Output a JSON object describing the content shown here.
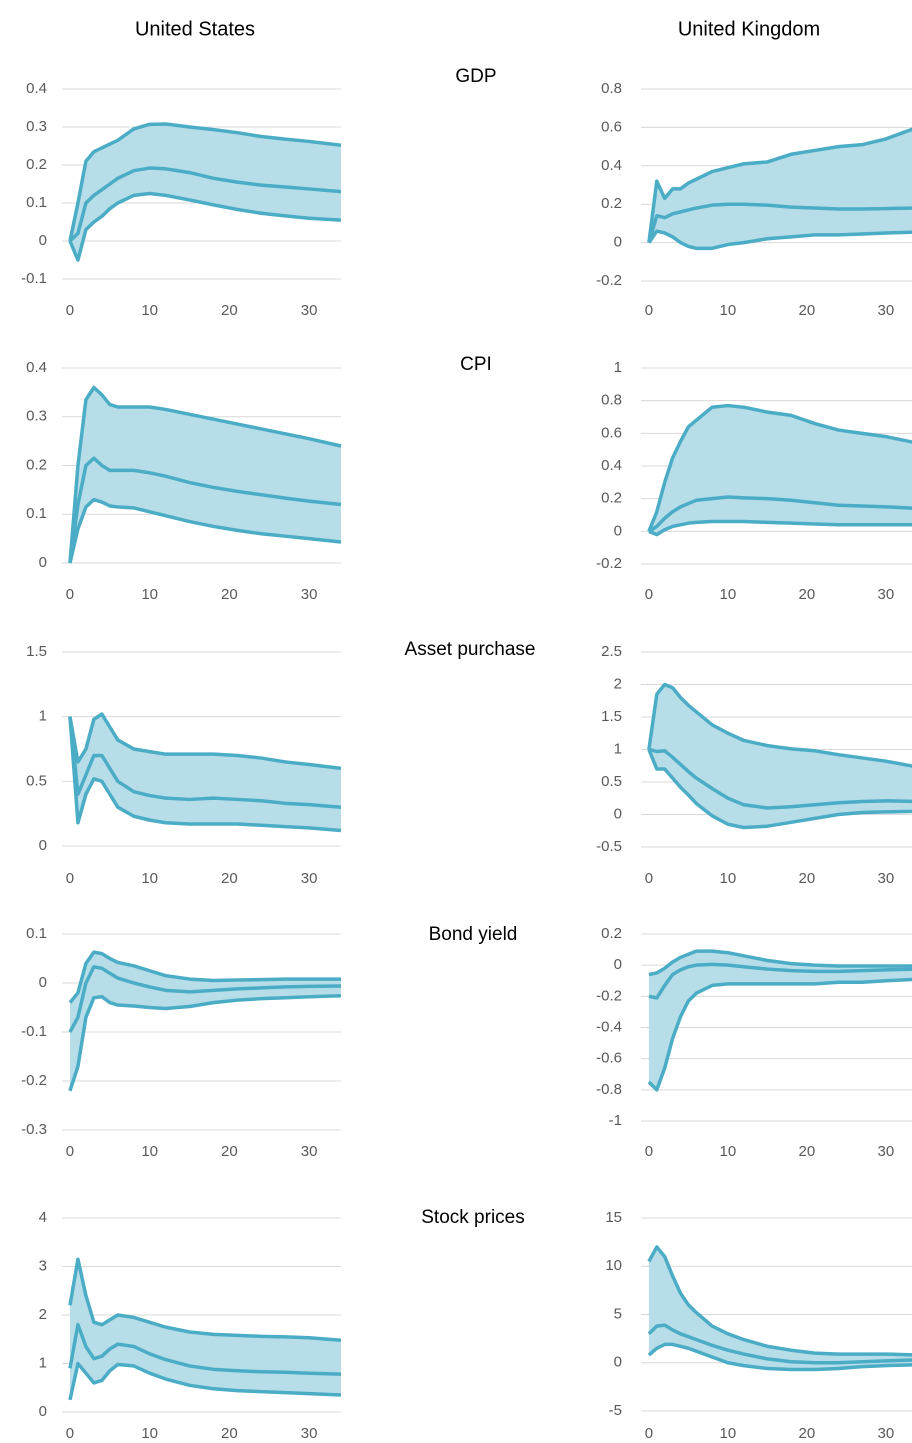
{
  "column_titles": [
    "United States",
    "United Kingdom"
  ],
  "row_titles": [
    "GDP",
    "CPI",
    "Asset purchase",
    "Bond yield",
    "Stock prices"
  ],
  "chart_data": [
    {
      "type": "line",
      "fill": "#b7dde8",
      "grid": true,
      "x": [
        0,
        1,
        2,
        3,
        4,
        5,
        6,
        8,
        10,
        12,
        15,
        18,
        21,
        24,
        27,
        30,
        34
      ],
      "xlim": [
        -1,
        34
      ],
      "xticks": [
        0,
        10,
        20,
        30
      ],
      "ylim": [
        -0.1,
        0.4
      ],
      "yticks": [
        -0.1,
        0,
        0.1,
        0.2,
        0.3,
        0.4
      ],
      "series": [
        {
          "color": "#4bacc6",
          "values": [
            0,
            0.1,
            0.21,
            0.235,
            0.245,
            0.255,
            0.265,
            0.295,
            0.307,
            0.308,
            0.3,
            0.293,
            0.285,
            0.275,
            0.268,
            0.262,
            0.252
          ]
        },
        {
          "color": "#4bacc6",
          "values": [
            0,
            0.02,
            0.1,
            0.12,
            0.135,
            0.15,
            0.165,
            0.185,
            0.192,
            0.19,
            0.18,
            0.165,
            0.155,
            0.147,
            0.142,
            0.137,
            0.13
          ]
        },
        {
          "color": "#4bacc6",
          "values": [
            0,
            -0.05,
            0.03,
            0.05,
            0.065,
            0.085,
            0.1,
            0.12,
            0.125,
            0.12,
            0.108,
            0.095,
            0.083,
            0.073,
            0.066,
            0.06,
            0.055
          ]
        }
      ]
    },
    {
      "type": "line",
      "fill": "#b7dde8",
      "grid": true,
      "x": [
        0,
        1,
        2,
        3,
        4,
        5,
        6,
        8,
        10,
        12,
        15,
        18,
        21,
        24,
        27,
        30,
        34
      ],
      "xlim": [
        -1,
        34
      ],
      "xticks": [
        0,
        10,
        20,
        30
      ],
      "ylim": [
        -0.2,
        0.8
      ],
      "yticks": [
        -0.2,
        0,
        0.2,
        0.4,
        0.6,
        0.8
      ],
      "series": [
        {
          "color": "#4bacc6",
          "values": [
            0,
            0.32,
            0.23,
            0.28,
            0.28,
            0.31,
            0.33,
            0.37,
            0.39,
            0.41,
            0.42,
            0.46,
            0.48,
            0.5,
            0.51,
            0.54,
            0.6
          ]
        },
        {
          "color": "#4bacc6",
          "values": [
            0,
            0.14,
            0.13,
            0.15,
            0.16,
            0.17,
            0.18,
            0.195,
            0.2,
            0.2,
            0.195,
            0.185,
            0.18,
            0.175,
            0.175,
            0.177,
            0.18
          ]
        },
        {
          "color": "#4bacc6",
          "values": [
            0,
            0.06,
            0.05,
            0.03,
            0,
            -0.02,
            -0.03,
            -0.03,
            -0.01,
            0,
            0.02,
            0.03,
            0.04,
            0.04,
            0.045,
            0.05,
            0.055
          ]
        }
      ]
    },
    {
      "type": "line",
      "fill": "#b7dde8",
      "grid": true,
      "x": [
        0,
        1,
        2,
        3,
        4,
        5,
        6,
        8,
        10,
        12,
        15,
        18,
        21,
        24,
        27,
        30,
        34
      ],
      "xlim": [
        -1,
        34
      ],
      "xticks": [
        0,
        10,
        20,
        30
      ],
      "ylim": [
        0,
        0.4
      ],
      "yticks": [
        0,
        0.1,
        0.2,
        0.3,
        0.4
      ],
      "series": [
        {
          "color": "#4bacc6",
          "values": [
            0,
            0.2,
            0.335,
            0.36,
            0.345,
            0.325,
            0.32,
            0.32,
            0.32,
            0.315,
            0.305,
            0.295,
            0.285,
            0.275,
            0.265,
            0.255,
            0.24
          ]
        },
        {
          "color": "#4bacc6",
          "values": [
            0,
            0.12,
            0.2,
            0.215,
            0.2,
            0.19,
            0.19,
            0.19,
            0.185,
            0.178,
            0.165,
            0.155,
            0.147,
            0.14,
            0.133,
            0.127,
            0.12
          ]
        },
        {
          "color": "#4bacc6",
          "values": [
            0,
            0.07,
            0.115,
            0.13,
            0.125,
            0.117,
            0.115,
            0.113,
            0.105,
            0.097,
            0.085,
            0.075,
            0.067,
            0.06,
            0.055,
            0.05,
            0.043
          ]
        }
      ]
    },
    {
      "type": "line",
      "fill": "#b7dde8",
      "grid": true,
      "x": [
        0,
        1,
        2,
        3,
        4,
        5,
        6,
        8,
        10,
        12,
        15,
        18,
        21,
        24,
        27,
        30,
        34
      ],
      "xlim": [
        -1,
        34
      ],
      "xticks": [
        0,
        10,
        20,
        30
      ],
      "ylim": [
        -0.2,
        1
      ],
      "yticks": [
        -0.2,
        0,
        0.2,
        0.4,
        0.6,
        0.8,
        1
      ],
      "series": [
        {
          "color": "#4bacc6",
          "values": [
            0,
            0.12,
            0.3,
            0.45,
            0.55,
            0.64,
            0.68,
            0.76,
            0.77,
            0.76,
            0.73,
            0.71,
            0.66,
            0.62,
            0.6,
            0.58,
            0.54
          ]
        },
        {
          "color": "#4bacc6",
          "values": [
            0,
            0.03,
            0.08,
            0.12,
            0.15,
            0.17,
            0.19,
            0.2,
            0.21,
            0.205,
            0.2,
            0.19,
            0.175,
            0.16,
            0.155,
            0.15,
            0.14
          ]
        },
        {
          "color": "#4bacc6",
          "values": [
            0,
            -0.02,
            0.01,
            0.03,
            0.04,
            0.05,
            0.055,
            0.06,
            0.06,
            0.06,
            0.055,
            0.05,
            0.045,
            0.04,
            0.04,
            0.04,
            0.04
          ]
        }
      ]
    },
    {
      "type": "line",
      "fill": "#b7dde8",
      "grid": true,
      "x": [
        0,
        1,
        2,
        3,
        4,
        5,
        6,
        8,
        10,
        12,
        15,
        18,
        21,
        24,
        27,
        30,
        34
      ],
      "xlim": [
        -1,
        34
      ],
      "xticks": [
        0,
        10,
        20,
        30
      ],
      "ylim": [
        0,
        1.5
      ],
      "yticks": [
        0,
        0.5,
        1,
        1.5
      ],
      "series": [
        {
          "color": "#4bacc6",
          "values": [
            1,
            0.65,
            0.75,
            0.98,
            1.02,
            0.92,
            0.82,
            0.75,
            0.73,
            0.71,
            0.71,
            0.71,
            0.7,
            0.68,
            0.65,
            0.63,
            0.6
          ]
        },
        {
          "color": "#4bacc6",
          "values": [
            1,
            0.4,
            0.55,
            0.7,
            0.7,
            0.6,
            0.5,
            0.42,
            0.39,
            0.37,
            0.36,
            0.37,
            0.36,
            0.35,
            0.33,
            0.32,
            0.3
          ]
        },
        {
          "color": "#4bacc6",
          "values": [
            1,
            0.18,
            0.4,
            0.52,
            0.5,
            0.4,
            0.3,
            0.23,
            0.2,
            0.18,
            0.17,
            0.17,
            0.17,
            0.16,
            0.15,
            0.14,
            0.12
          ]
        }
      ]
    },
    {
      "type": "line",
      "fill": "#b7dde8",
      "grid": true,
      "x": [
        0,
        1,
        2,
        3,
        4,
        5,
        6,
        8,
        10,
        12,
        15,
        18,
        21,
        24,
        27,
        30,
        34
      ],
      "xlim": [
        -1,
        34
      ],
      "xticks": [
        0,
        10,
        20,
        30
      ],
      "ylim": [
        -0.5,
        2.5
      ],
      "yticks": [
        -0.5,
        0,
        0.5,
        1,
        1.5,
        2,
        2.5
      ],
      "series": [
        {
          "color": "#4bacc6",
          "values": [
            1,
            1.85,
            2,
            1.95,
            1.8,
            1.68,
            1.58,
            1.38,
            1.25,
            1.14,
            1.06,
            1.01,
            0.98,
            0.92,
            0.87,
            0.82,
            0.73
          ]
        },
        {
          "color": "#4bacc6",
          "values": [
            1,
            0.97,
            0.98,
            0.88,
            0.77,
            0.66,
            0.56,
            0.4,
            0.25,
            0.15,
            0.1,
            0.12,
            0.15,
            0.18,
            0.2,
            0.21,
            0.2
          ]
        },
        {
          "color": "#4bacc6",
          "values": [
            1,
            0.7,
            0.7,
            0.56,
            0.42,
            0.3,
            0.17,
            -0.02,
            -0.15,
            -0.2,
            -0.18,
            -0.12,
            -0.06,
            0,
            0.03,
            0.04,
            0.05
          ]
        }
      ]
    },
    {
      "type": "line",
      "fill": "#b7dde8",
      "grid": true,
      "x": [
        0,
        1,
        2,
        3,
        4,
        5,
        6,
        8,
        10,
        12,
        15,
        18,
        21,
        24,
        27,
        30,
        34
      ],
      "xlim": [
        -1,
        34
      ],
      "xticks": [
        0,
        10,
        20,
        30
      ],
      "ylim": [
        -0.3,
        0.1
      ],
      "yticks": [
        -0.3,
        -0.2,
        -0.1,
        0,
        0.1
      ],
      "series": [
        {
          "color": "#4bacc6",
          "values": [
            -0.04,
            -0.02,
            0.04,
            0.063,
            0.06,
            0.05,
            0.042,
            0.035,
            0.025,
            0.015,
            0.008,
            0.005,
            0.006,
            0.007,
            0.008,
            0.008,
            0.008
          ]
        },
        {
          "color": "#4bacc6",
          "values": [
            -0.1,
            -0.07,
            0,
            0.033,
            0.03,
            0.02,
            0.01,
            0,
            -0.008,
            -0.015,
            -0.018,
            -0.015,
            -0.012,
            -0.01,
            -0.008,
            -0.007,
            -0.006
          ]
        },
        {
          "color": "#4bacc6",
          "values": [
            -0.22,
            -0.17,
            -0.07,
            -0.03,
            -0.028,
            -0.04,
            -0.045,
            -0.047,
            -0.05,
            -0.052,
            -0.048,
            -0.04,
            -0.035,
            -0.032,
            -0.03,
            -0.028,
            -0.026
          ]
        }
      ]
    },
    {
      "type": "line",
      "fill": "#b7dde8",
      "grid": true,
      "x": [
        0,
        1,
        2,
        3,
        4,
        5,
        6,
        8,
        10,
        12,
        15,
        18,
        21,
        24,
        27,
        30,
        34
      ],
      "xlim": [
        -1,
        34
      ],
      "xticks": [
        0,
        10,
        20,
        30
      ],
      "ylim": [
        -1,
        0.2
      ],
      "yticks": [
        -1,
        -0.8,
        -0.6,
        -0.4,
        -0.2,
        0,
        0.2
      ],
      "series": [
        {
          "color": "#4bacc6",
          "values": [
            -0.06,
            -0.05,
            -0.02,
            0.02,
            0.05,
            0.07,
            0.09,
            0.09,
            0.08,
            0.06,
            0.03,
            0.01,
            0,
            -0.005,
            -0.005,
            -0.005,
            -0.005
          ]
        },
        {
          "color": "#4bacc6",
          "values": [
            -0.2,
            -0.21,
            -0.13,
            -0.06,
            -0.03,
            -0.01,
            0,
            0.005,
            0,
            -0.01,
            -0.025,
            -0.035,
            -0.04,
            -0.04,
            -0.035,
            -0.03,
            -0.025
          ]
        },
        {
          "color": "#4bacc6",
          "values": [
            -0.75,
            -0.8,
            -0.66,
            -0.47,
            -0.33,
            -0.23,
            -0.18,
            -0.13,
            -0.12,
            -0.12,
            -0.12,
            -0.12,
            -0.12,
            -0.11,
            -0.11,
            -0.1,
            -0.09
          ]
        }
      ]
    },
    {
      "type": "line",
      "fill": "#b7dde8",
      "grid": true,
      "x": [
        0,
        1,
        2,
        3,
        4,
        5,
        6,
        8,
        10,
        12,
        15,
        18,
        21,
        24,
        27,
        30,
        34
      ],
      "xlim": [
        -1,
        34
      ],
      "xticks": [
        0,
        10,
        20,
        30
      ],
      "ylim": [
        0,
        4
      ],
      "yticks": [
        0,
        1,
        2,
        3,
        4
      ],
      "series": [
        {
          "color": "#4bacc6",
          "values": [
            2.2,
            3.15,
            2.4,
            1.85,
            1.8,
            1.9,
            2,
            1.95,
            1.85,
            1.75,
            1.65,
            1.6,
            1.58,
            1.56,
            1.55,
            1.53,
            1.48
          ]
        },
        {
          "color": "#4bacc6",
          "values": [
            0.9,
            1.8,
            1.35,
            1.1,
            1.15,
            1.3,
            1.4,
            1.35,
            1.2,
            1.08,
            0.95,
            0.88,
            0.85,
            0.83,
            0.82,
            0.8,
            0.78
          ]
        },
        {
          "color": "#4bacc6",
          "values": [
            0.25,
            1,
            0.8,
            0.6,
            0.65,
            0.85,
            0.98,
            0.95,
            0.8,
            0.68,
            0.55,
            0.48,
            0.44,
            0.42,
            0.4,
            0.38,
            0.35
          ]
        }
      ]
    },
    {
      "type": "line",
      "fill": "#b7dde8",
      "grid": true,
      "x": [
        0,
        1,
        2,
        3,
        4,
        5,
        6,
        8,
        10,
        12,
        15,
        18,
        21,
        24,
        27,
        30,
        34
      ],
      "xlim": [
        -1,
        34
      ],
      "xticks": [
        0,
        10,
        20,
        30
      ],
      "ylim": [
        -5,
        15
      ],
      "yticks": [
        -5,
        0,
        5,
        10,
        15
      ],
      "series": [
        {
          "color": "#4bacc6",
          "values": [
            10.5,
            12,
            11,
            9,
            7.2,
            6,
            5.2,
            3.8,
            3,
            2.4,
            1.7,
            1.3,
            1,
            0.9,
            0.9,
            0.9,
            0.8
          ]
        },
        {
          "color": "#4bacc6",
          "values": [
            3,
            3.8,
            3.9,
            3.4,
            3,
            2.7,
            2.4,
            1.8,
            1.3,
            0.9,
            0.4,
            0.1,
            0,
            0,
            0.1,
            0.2,
            0.3
          ]
        },
        {
          "color": "#4bacc6",
          "values": [
            0.8,
            1.5,
            1.9,
            1.9,
            1.7,
            1.5,
            1.2,
            0.6,
            0,
            -0.3,
            -0.6,
            -0.7,
            -0.7,
            -0.6,
            -0.4,
            -0.3,
            -0.2
          ]
        }
      ]
    }
  ]
}
